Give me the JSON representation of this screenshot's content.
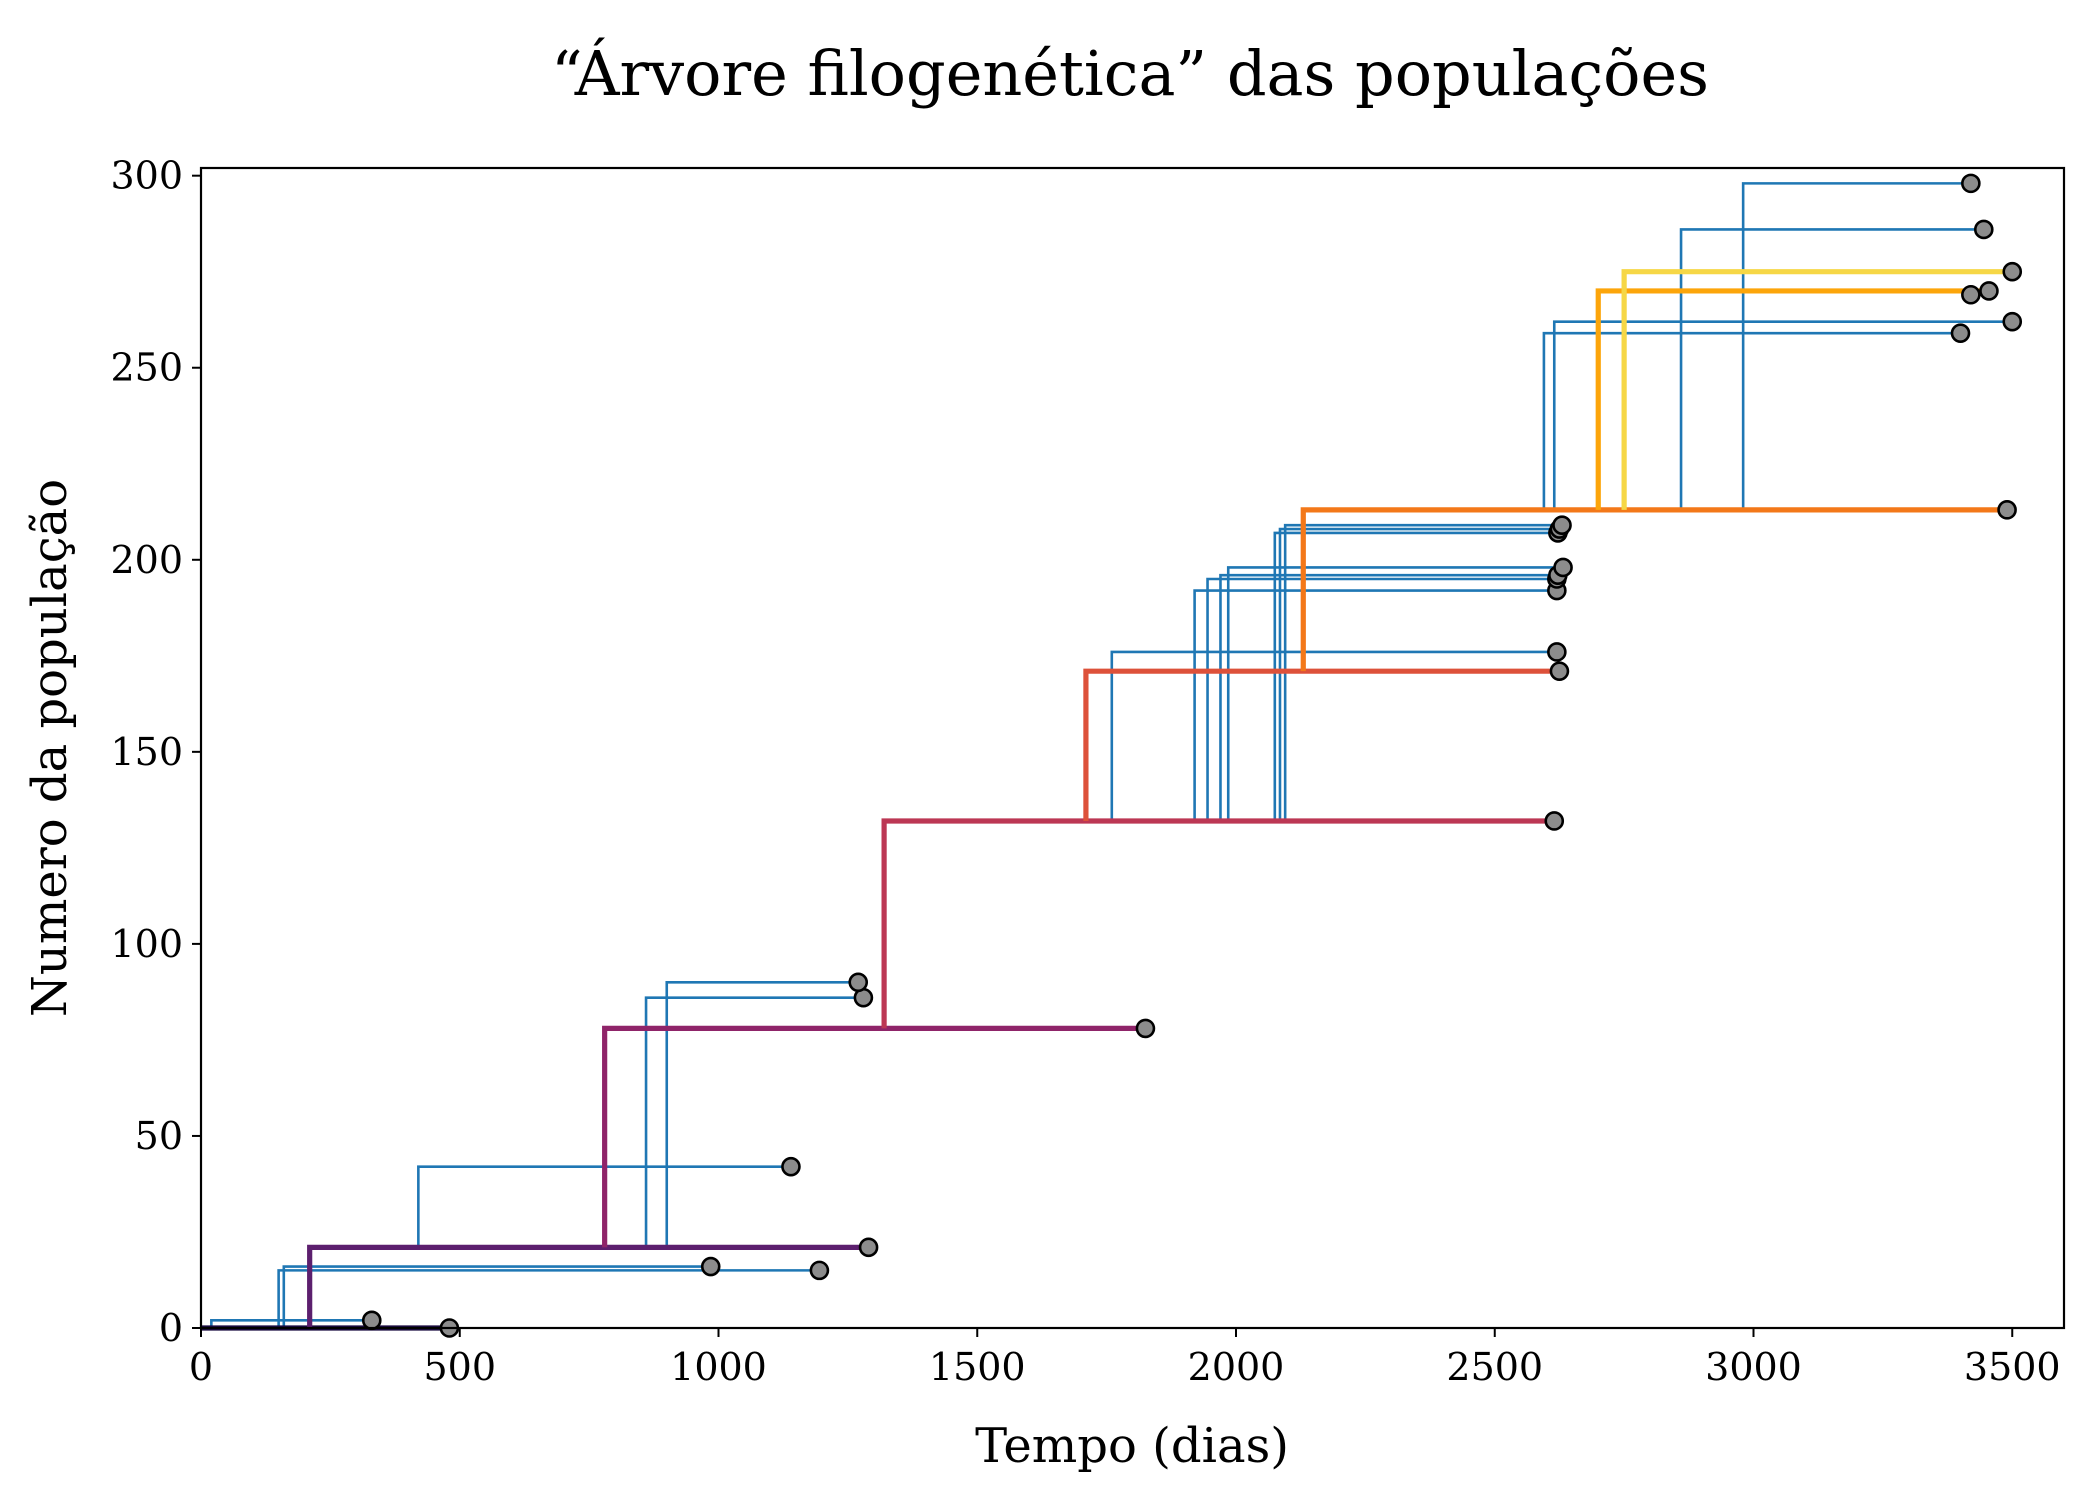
{
  "chart_data": {
    "type": "line",
    "title": "“Árvore filogenética” das populações",
    "xlabel": "Tempo (dias)",
    "ylabel": "Numero da população",
    "xlim": [
      0,
      3600
    ],
    "ylim": [
      0,
      302
    ],
    "xticks": [
      0,
      500,
      1000,
      1500,
      2000,
      2500,
      3000,
      3500
    ],
    "yticks": [
      0,
      50,
      100,
      150,
      200,
      250,
      300
    ],
    "grid": false,
    "legend": "none",
    "branch_color": "#1f77b4",
    "end_marker_color": "#8c8c8c",
    "branches": [
      {
        "parent_y": 0,
        "split_x": 20,
        "y": 2,
        "end_x": 330
      },
      {
        "parent_y": 0,
        "split_x": 150,
        "y": 15,
        "end_x": 1195
      },
      {
        "parent_y": 0,
        "split_x": 160,
        "y": 16,
        "end_x": 985
      },
      {
        "parent_y": 21,
        "split_x": 420,
        "y": 42,
        "end_x": 1140
      },
      {
        "parent_y": 21,
        "split_x": 860,
        "y": 86,
        "end_x": 1280
      },
      {
        "parent_y": 21,
        "split_x": 900,
        "y": 90,
        "end_x": 1270
      },
      {
        "parent_y": 132,
        "split_x": 1760,
        "y": 176,
        "end_x": 2620
      },
      {
        "parent_y": 132,
        "split_x": 1920,
        "y": 192,
        "end_x": 2620
      },
      {
        "parent_y": 132,
        "split_x": 1945,
        "y": 195,
        "end_x": 2620
      },
      {
        "parent_y": 132,
        "split_x": 1970,
        "y": 196,
        "end_x": 2622
      },
      {
        "parent_y": 132,
        "split_x": 1985,
        "y": 198,
        "end_x": 2632
      },
      {
        "parent_y": 132,
        "split_x": 2075,
        "y": 207,
        "end_x": 2622
      },
      {
        "parent_y": 132,
        "split_x": 2085,
        "y": 208,
        "end_x": 2625
      },
      {
        "parent_y": 132,
        "split_x": 2095,
        "y": 209,
        "end_x": 2630
      },
      {
        "parent_y": 213,
        "split_x": 2595,
        "y": 259,
        "end_x": 3400
      },
      {
        "parent_y": 213,
        "split_x": 2615,
        "y": 262,
        "end_x": 3500
      },
      {
        "parent_y": 213,
        "split_x": 2860,
        "y": 286,
        "end_x": 3445
      },
      {
        "parent_y": 213,
        "split_x": 2980,
        "y": 298,
        "end_x": 3420
      }
    ],
    "main_lineage": [
      {
        "parent_y": 0,
        "split_x": 0,
        "y": 0,
        "end_x": 480,
        "color": "#1b0c41"
      },
      {
        "parent_y": 0,
        "split_x": 210,
        "y": 21,
        "end_x": 1290,
        "color": "#5c1f6e"
      },
      {
        "parent_y": 21,
        "split_x": 780,
        "y": 78,
        "end_x": 1825,
        "color": "#8f2469"
      },
      {
        "parent_y": 78,
        "split_x": 1320,
        "y": 132,
        "end_x": 2615,
        "color": "#bc3754"
      },
      {
        "parent_y": 132,
        "split_x": 1710,
        "y": 171,
        "end_x": 2625,
        "color": "#dd513a"
      },
      {
        "parent_y": 171,
        "split_x": 2130,
        "y": 213,
        "end_x": 3490,
        "color": "#f37819"
      },
      {
        "parent_y": 213,
        "split_x": 2700,
        "y": 270,
        "end_x": 3455,
        "color": "#fca50a"
      },
      {
        "parent_y": 213,
        "split_x": 2750,
        "y": 275,
        "end_x": 3500,
        "color": "#f6d746"
      }
    ],
    "extra_end_markers": [
      {
        "x": 3420,
        "y": 269
      }
    ]
  }
}
